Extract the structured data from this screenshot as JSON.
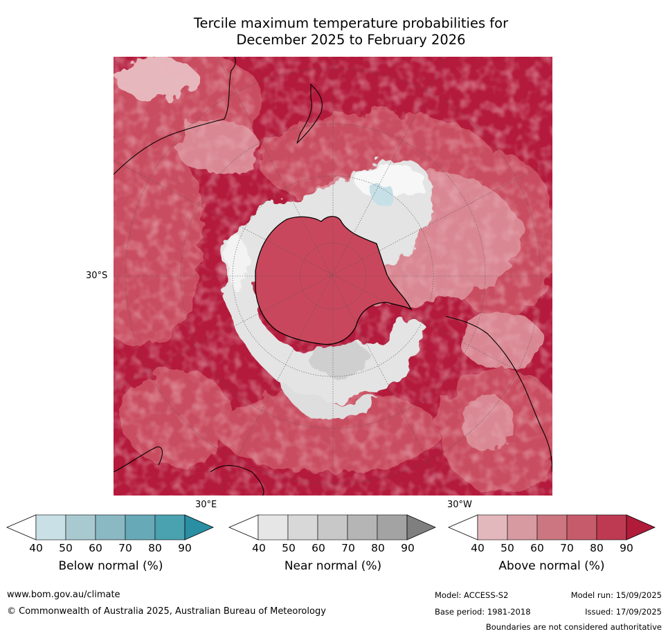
{
  "title_line1": "Tercile maximum temperature probabilities for",
  "title_line2": "December 2025 to February 2026",
  "map": {
    "latitude_label": "30°S",
    "longitude_labels": [
      "30°E",
      "30°W"
    ],
    "colors": {
      "above_dominant": "#b31a3b",
      "above_mid": "#c94d61",
      "above_light": "#d98792",
      "above_pale": "#e6b8bd",
      "near_normal": "#e4e4e4",
      "below_light": "#c7e0e7",
      "coastline": "#000000"
    }
  },
  "colorbars": [
    {
      "label": "Below normal (%)",
      "ticks": [
        "40",
        "50",
        "60",
        "70",
        "80",
        "90"
      ],
      "colors": [
        "#ffffff",
        "#c9e1e6",
        "#a9c9d0",
        "#8ab8c3",
        "#68a9b8",
        "#4aa1b0",
        "#2a8fa3"
      ]
    },
    {
      "label": "Near normal (%)",
      "ticks": [
        "40",
        "50",
        "60",
        "70",
        "80",
        "90"
      ],
      "colors": [
        "#ffffff",
        "#e6e6e6",
        "#d8d8d8",
        "#c8c8c8",
        "#b5b5b5",
        "#a3a3a3",
        "#7f7f7f"
      ]
    },
    {
      "label": "Above normal (%)",
      "ticks": [
        "40",
        "50",
        "60",
        "70",
        "80",
        "90"
      ],
      "colors": [
        "#ffffff",
        "#e3b8bd",
        "#d79aa1",
        "#cb7680",
        "#c65c6b",
        "#bd3a52",
        "#b01b3a"
      ]
    }
  ],
  "footer": {
    "website": "www.bom.gov.au/climate",
    "copyright": "© Commonwealth of Australia 2025, Australian Bureau of Meteorology",
    "model": "Model: ACCESS-S2",
    "model_run": "Model run: 15/09/2025",
    "base_period": "Base period: 1981-2018",
    "issued": "Issued: 17/09/2025",
    "disclaimer": "Boundaries are not considered authoritative"
  }
}
